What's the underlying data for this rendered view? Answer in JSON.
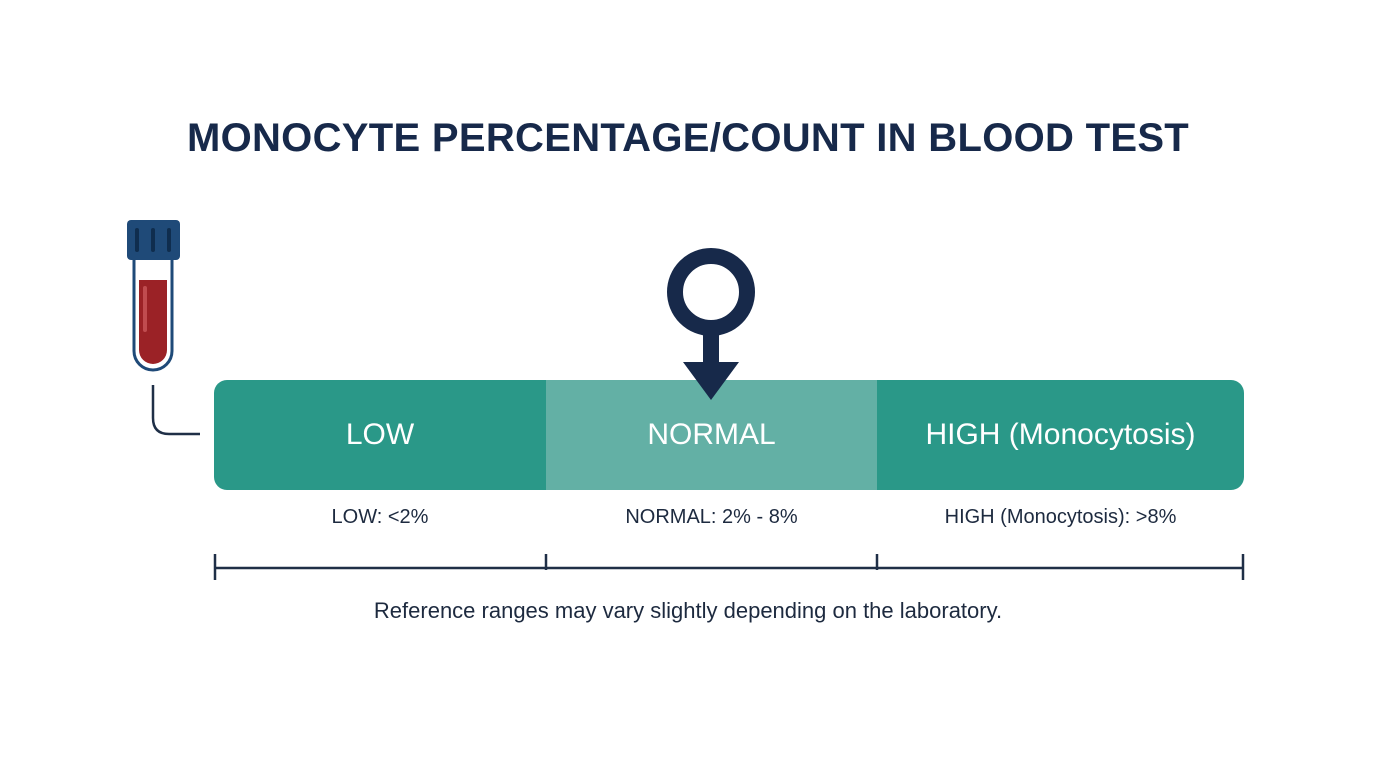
{
  "title": "MONOCYTE PERCENTAGE/COUNT IN BLOOD TEST",
  "colors": {
    "title": "#17294a",
    "low_segment": "#2a9888",
    "normal_segment": "#63b0a5",
    "high_segment": "#2a9888",
    "marker": "#17294a",
    "tube_cap": "#1f4a78",
    "blood": "#9b2226"
  },
  "icons": {
    "tube": "blood-test-tube-icon",
    "marker": "location-pin-arrow-icon"
  },
  "segments": [
    {
      "label": "LOW"
    },
    {
      "label": "NORMAL"
    },
    {
      "label": "HIGH (Monocytosis)"
    }
  ],
  "marker_on": "NORMAL",
  "range_labels": [
    {
      "text": "LOW: <2%"
    },
    {
      "text": "NORMAL: 2% - 8%"
    },
    {
      "text": "HIGH (Monocytosis): >8%"
    }
  ],
  "footnote": "Reference ranges may vary slightly depending on the laboratory."
}
